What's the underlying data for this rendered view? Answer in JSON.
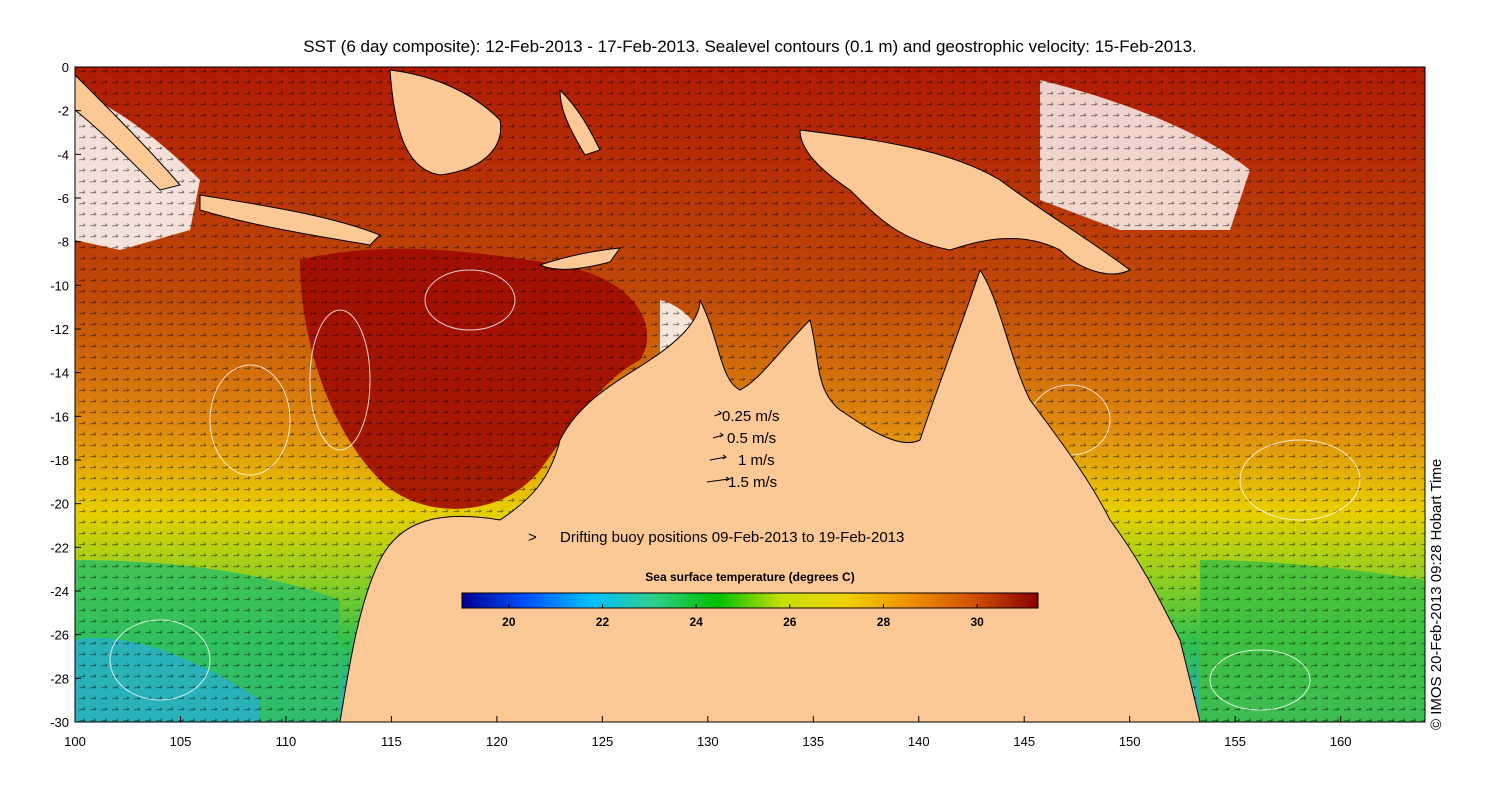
{
  "title": "SST (6 day composite): 12-Feb-2013 - 17-Feb-2013. Sealevel contours (0.1 m) and geostrophic velocity: 15-Feb-2013.",
  "credit": "© IMOS 20-Feb-2013 09:28 Hobart Time",
  "axes": {
    "x_ticks": [
      "100",
      "105",
      "110",
      "115",
      "120",
      "125",
      "130",
      "135",
      "140",
      "145",
      "150",
      "155",
      "160"
    ],
    "y_ticks": [
      "0",
      "-2",
      "-4",
      "-6",
      "-8",
      "-10",
      "-12",
      "-14",
      "-16",
      "-18",
      "-20",
      "-22",
      "-24",
      "-26",
      "-28",
      "-30"
    ],
    "lon_range": [
      100,
      164
    ],
    "lat_range": [
      -30,
      0
    ]
  },
  "velocity_legend": [
    {
      "label": "0.25 m/s",
      "speed": 0.25
    },
    {
      "label": "0.5 m/s",
      "speed": 0.5
    },
    {
      "label": "1 m/s",
      "speed": 1
    },
    {
      "label": "1.5 m/s",
      "speed": 1.5
    }
  ],
  "buoy_legend": {
    "symbol": ">",
    "label": "Drifting buoy positions 09-Feb-2013 to 19-Feb-2013",
    "color": "#e020e0"
  },
  "colorbar": {
    "title": "Sea surface temperature (degrees C)",
    "range": [
      19,
      31.3
    ],
    "ticks": [
      "20",
      "22",
      "24",
      "26",
      "28",
      "30"
    ],
    "colors": [
      "#00008f",
      "#0050ff",
      "#00bfff",
      "#2ecf8a",
      "#00c000",
      "#c8e000",
      "#f0d000",
      "#f09000",
      "#d05000",
      "#8b0000"
    ]
  },
  "land_color": "#fcc896",
  "contour_color": "#ffffff",
  "vector_color": "#000000"
}
